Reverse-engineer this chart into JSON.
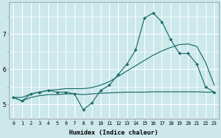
{
  "xlabel": "Humidex (Indice chaleur)",
  "bg_color": "#cce8ea",
  "grid_color": "#ffffff",
  "line_color": "#1a6b6b",
  "x_ticks": [
    0,
    1,
    2,
    3,
    4,
    5,
    6,
    7,
    8,
    9,
    10,
    11,
    12,
    13,
    14,
    15,
    16,
    17,
    18,
    19,
    20,
    21,
    22,
    23
  ],
  "x_tick_labels": [
    "0",
    "1",
    "2",
    "3",
    "4",
    "5",
    "6",
    "7",
    "8",
    "9",
    "10",
    "11",
    "12",
    "13",
    "14",
    "15",
    "16",
    "17",
    "18",
    "19",
    "20",
    "21",
    "22",
    "23"
  ],
  "y_ticks": [
    5,
    6,
    7
  ],
  "ylim": [
    4.6,
    7.9
  ],
  "xlim": [
    -0.5,
    23.5
  ],
  "y_main": [
    5.2,
    5.1,
    5.3,
    5.35,
    5.4,
    5.35,
    5.35,
    5.3,
    4.85,
    5.05,
    5.4,
    5.55,
    5.85,
    6.15,
    6.55,
    7.45,
    7.6,
    7.35,
    6.85,
    6.45,
    6.45,
    6.15,
    5.5,
    5.35
  ],
  "y_upper": [
    5.2,
    5.2,
    5.3,
    5.35,
    5.4,
    5.42,
    5.45,
    5.45,
    5.45,
    5.48,
    5.55,
    5.65,
    5.8,
    5.95,
    6.1,
    6.25,
    6.4,
    6.52,
    6.62,
    6.7,
    6.72,
    6.65,
    6.2,
    5.55
  ],
  "y_lower": [
    5.2,
    5.1,
    5.2,
    5.25,
    5.28,
    5.28,
    5.3,
    5.3,
    5.28,
    5.3,
    5.32,
    5.33,
    5.34,
    5.35,
    5.35,
    5.35,
    5.36,
    5.36,
    5.36,
    5.36,
    5.36,
    5.36,
    5.35,
    5.35
  ]
}
